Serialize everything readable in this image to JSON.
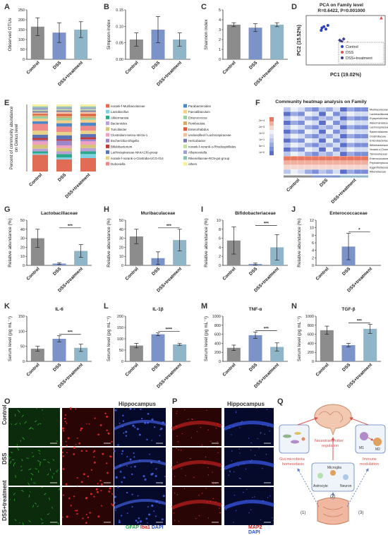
{
  "panels": {
    "A": {
      "letter": "A"
    },
    "B": {
      "letter": "B"
    },
    "C": {
      "letter": "C"
    },
    "D": {
      "letter": "D"
    },
    "E": {
      "letter": "E"
    },
    "F": {
      "letter": "F"
    },
    "G": {
      "letter": "G"
    },
    "H": {
      "letter": "H"
    },
    "I": {
      "letter": "I"
    },
    "J": {
      "letter": "J"
    },
    "K": {
      "letter": "K"
    },
    "L": {
      "letter": "L"
    },
    "M": {
      "letter": "M"
    },
    "N": {
      "letter": "N"
    },
    "O": {
      "letter": "O"
    },
    "P": {
      "letter": "P"
    },
    "Q": {
      "letter": "Q"
    }
  },
  "groups": [
    "Control",
    "DSS",
    "DSS+treatment"
  ],
  "colors": {
    "control": "#8c8c8c",
    "dss": "#7b93c9",
    "treat": "#8fb5c9",
    "grid": "#333333"
  },
  "chart_data": [
    {
      "id": "A",
      "type": "bar",
      "categories": [
        "Control",
        "DSS",
        "DSS+treatment"
      ],
      "values": [
        165,
        135,
        150
      ],
      "errors": [
        45,
        50,
        40
      ],
      "ylabel": "Observed OTUs",
      "ylim": [
        0,
        250
      ],
      "yticks": [
        0,
        50,
        100,
        150,
        200,
        250
      ]
    },
    {
      "id": "B",
      "type": "bar",
      "categories": [
        "Control",
        "DSS",
        "DSS+treatment"
      ],
      "values": [
        0.06,
        0.09,
        0.06
      ],
      "errors": [
        0.02,
        0.04,
        0.02
      ],
      "ylabel": "Simpson index",
      "ylim": [
        0,
        0.15
      ],
      "yticks": [
        0.0,
        0.05,
        0.1,
        0.15
      ]
    },
    {
      "id": "C",
      "type": "bar",
      "categories": [
        "Control",
        "DSS",
        "DSS+treatment"
      ],
      "values": [
        3.5,
        3.2,
        3.5
      ],
      "errors": [
        0.2,
        0.4,
        0.2
      ],
      "ylabel": "Shannon index",
      "ylim": [
        0,
        5
      ],
      "yticks": [
        0,
        1,
        2,
        3,
        4,
        5
      ]
    },
    {
      "id": "D",
      "type": "scatter",
      "title": "PCA on Family level",
      "subtitle": "R=0.6422, P=0.001000",
      "xlabel": "PC1 (19.02%)",
      "ylabel": "PC2 (15.52%)",
      "series": [
        {
          "name": "Control",
          "color": "#2a3fbf",
          "points": [
            [
              -0.6,
              0.5
            ],
            [
              -0.55,
              0.55
            ],
            [
              -0.5,
              0.45
            ],
            [
              -0.62,
              0.4
            ],
            [
              -0.45,
              0.6
            ]
          ]
        },
        {
          "name": "DSS",
          "color": "#d9534f",
          "points": [
            [
              0.1,
              -0.2
            ],
            [
              0.15,
              -0.35
            ],
            [
              0.05,
              -0.1
            ],
            [
              0.9,
              0.9
            ],
            [
              0.2,
              -0.5
            ]
          ]
        },
        {
          "name": "DSS+treatment",
          "color": "#3a3a8a",
          "points": [
            [
              -0.1,
              -0.05
            ],
            [
              -0.05,
              0.05
            ],
            [
              0.0,
              -0.15
            ],
            [
              -0.15,
              0.0
            ]
          ]
        }
      ]
    },
    {
      "id": "E",
      "type": "bar",
      "ylabel": "Percent of community abundance on Genus level",
      "categories": [
        "Control",
        "DSS",
        "DSS+treatment"
      ],
      "legend": [
        "norank-f-Muribaculaceae",
        "Lactobacillus",
        "Akkermansia",
        "Bacteroides",
        "Turicibacter",
        "Clostridium-sensu-stricto-1",
        "Escherichia-Shigella",
        "Bifidobacterium",
        "Lachnospiraceae-NK4A136-group",
        "norank-f-norank-o-Clostridia-UCG-014",
        "Dubosiella",
        "Parabacteroides",
        "Faecalibaculum",
        "Enterococcus",
        "Romboutsia",
        "Enterorhabdus",
        "unclassified-f-Lachnospiraceae",
        "Helicobacter",
        "norank-f-norank-o-Rhodospirillales",
        "Alloprevotella",
        "Rikenellaceae-RC9-gut-group",
        "others"
      ],
      "legend_colors": [
        "#e06c55",
        "#7fd0e0",
        "#2ca88a",
        "#b8a0d8",
        "#d6c37a",
        "#f0a0c0",
        "#9d86c9",
        "#c23b3b",
        "#5b74b8",
        "#e8d28a",
        "#f08a8a",
        "#4f86c6",
        "#f5d08a",
        "#9ad0a0",
        "#d9a86c",
        "#e05a3c",
        "#f0c0a0",
        "#7a7ab0",
        "#c0e0a0",
        "#a0a0d0",
        "#8ac0b0",
        "#f5f0a0"
      ]
    },
    {
      "id": "F",
      "type": "heatmap",
      "title": "Community heatmap analysis on Family",
      "scale": [
        "2e+4",
        "2e+3",
        "1e+2",
        "1e+1",
        "5e+1",
        "1e+0"
      ],
      "rows": [
        "Muribaculaceae",
        "Lactobacillaceae",
        "Erysipelotrichaceae",
        "Akkermansiaceae",
        "Lachnospiraceae",
        "Bacteroidaceae",
        "Clostridiaceae",
        "Enterobacteriaceae",
        "Bifidobacteriaceae",
        "Norank-o-Clostridia-UCG-014",
        "Tannerellaceae",
        "Enterococcaceae",
        "Peptostreptococcaceae",
        "Eggerthellaceae",
        "Rikenellaceae"
      ],
      "categories": [
        "Control",
        "DSS",
        "DSS+treatment"
      ]
    },
    {
      "id": "G",
      "type": "bar",
      "title": "Lactobacillaceae",
      "ylabel": "Relative abundance (%)",
      "categories": [
        "Control",
        "DSS",
        "DSS+treatment"
      ],
      "values": [
        30,
        2,
        16
      ],
      "errors": [
        10,
        1,
        7
      ],
      "ylim": [
        0,
        50
      ],
      "yticks": [
        0,
        10,
        20,
        30,
        40,
        50
      ],
      "sig": "***"
    },
    {
      "id": "H",
      "type": "bar",
      "title": "Muribaculaceae",
      "ylabel": "Relative abundance (%)",
      "categories": [
        "Control",
        "DSS",
        "DSS+treatment"
      ],
      "values": [
        32,
        8,
        28
      ],
      "errors": [
        8,
        7,
        12
      ],
      "ylim": [
        0,
        50
      ],
      "yticks": [
        0,
        10,
        20,
        30,
        40,
        50
      ],
      "sig": "***"
    },
    {
      "id": "I",
      "type": "bar",
      "title": "Bifidobacteriaceae",
      "ylabel": "Relative abundance (%)",
      "categories": [
        "Control",
        "DSS",
        "DSS+treatment"
      ],
      "values": [
        5.5,
        0.3,
        4.0
      ],
      "errors": [
        3,
        0.2,
        2.8
      ],
      "ylim": [
        0,
        10
      ],
      "yticks": [
        0,
        2,
        4,
        6,
        8,
        10
      ],
      "sig": "***"
    },
    {
      "id": "J",
      "type": "bar",
      "title": "Enterococcaceae",
      "ylabel": "Relative abundance (%)",
      "categories": [
        "Control",
        "DSS",
        "DSS+treatment"
      ],
      "values": [
        0,
        5,
        0
      ],
      "errors": [
        0,
        3.5,
        0
      ],
      "ylim": [
        0,
        12
      ],
      "yticks": [
        0,
        2,
        4,
        6,
        8,
        10,
        12
      ],
      "sig": "*"
    },
    {
      "id": "K",
      "type": "bar",
      "title": "IL-6",
      "ylabel": "Serum level (pg mL⁻¹)",
      "categories": [
        "Control",
        "DSS",
        "DSS+treatment"
      ],
      "values": [
        42,
        75,
        45
      ],
      "errors": [
        8,
        10,
        12
      ],
      "ylim": [
        0,
        150
      ],
      "yticks": [
        0,
        50,
        100,
        150
      ],
      "sig": "***"
    },
    {
      "id": "L",
      "type": "bar",
      "title": "IL-1β",
      "ylabel": "Serum level (pg mL⁻¹)",
      "categories": [
        "Control",
        "DSS",
        "DSS+treatment"
      ],
      "values": [
        70,
        120,
        75
      ],
      "errors": [
        10,
        6,
        4
      ],
      "ylim": [
        0,
        200
      ],
      "yticks": [
        0,
        50,
        100,
        150,
        200
      ],
      "sig": "****"
    },
    {
      "id": "M",
      "type": "bar",
      "title": "TNF-α",
      "ylabel": "Serum level (pg mL⁻¹)",
      "categories": [
        "Control",
        "DSS",
        "DSS+treatment"
      ],
      "values": [
        300,
        580,
        320
      ],
      "errors": [
        60,
        70,
        90
      ],
      "ylim": [
        0,
        1000
      ],
      "yticks": [
        0,
        200,
        400,
        600,
        800,
        1000
      ],
      "sig": "***"
    },
    {
      "id": "N",
      "type": "bar",
      "title": "TGF-β",
      "ylabel": "Serum level (pg mL⁻¹)",
      "categories": [
        "Control",
        "DSS",
        "DSS+treatment"
      ],
      "values": [
        690,
        360,
        720
      ],
      "errors": [
        90,
        40,
        100
      ],
      "ylim": [
        0,
        1000
      ],
      "yticks": [
        0,
        200,
        400,
        600,
        800,
        1000
      ],
      "sig": "***"
    }
  ],
  "micro": {
    "O": {
      "title": "Hippocampus",
      "rows": [
        "Control",
        "DSS",
        "DSS+treatment"
      ],
      "stain_gfap": "GFAP",
      "stain_iba1": "Iba1",
      "stain_dapi": "DAPI"
    },
    "P": {
      "title": "Hippocampus",
      "stain_map2": "MAP2",
      "stain_dapi": "DAPI"
    }
  },
  "schematic": {
    "gut": "Gut microbiota homeostasis",
    "neuro": "Neurotransmitter regulation",
    "immune": "Immune modulation",
    "astro": "Astrocyte",
    "micro": "Microglia",
    "neuron": "Neuron",
    "m1": "M1",
    "m2": "M2",
    "n1": "(1)",
    "n2": "(2)",
    "n3": "(3)"
  }
}
